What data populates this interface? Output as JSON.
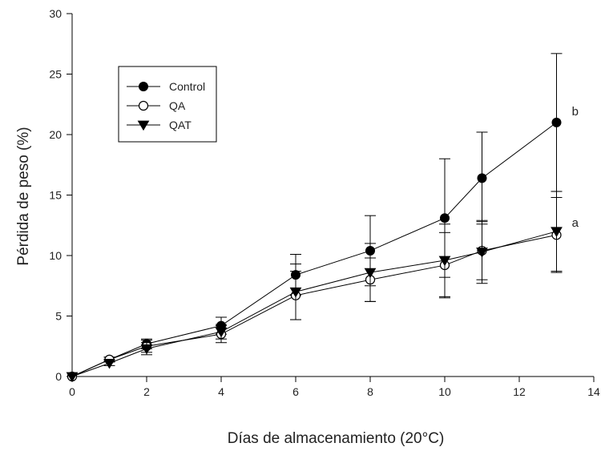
{
  "chart_data": {
    "type": "line",
    "title": "",
    "xlabel": "Días de almacenamiento (20°C)",
    "ylabel": "Pérdida de peso (%)",
    "xlim": [
      0,
      14
    ],
    "ylim": [
      0,
      30
    ],
    "xticks": [
      0,
      2,
      4,
      6,
      8,
      10,
      12,
      14
    ],
    "yticks": [
      0,
      5,
      10,
      15,
      20,
      25,
      30
    ],
    "xtick_labels": [
      "0",
      "2",
      "4",
      "6",
      "8",
      "10",
      "12",
      "14"
    ],
    "ytick_labels": [
      "0",
      "5",
      "10",
      "15",
      "20",
      "25",
      "30"
    ],
    "grid": false,
    "legend_position": "top-left",
    "series": [
      {
        "name": "Control",
        "marker": "filled-circle",
        "x": [
          0,
          1,
          2,
          4,
          6,
          8,
          10,
          11,
          13
        ],
        "y": [
          0,
          1.4,
          2.7,
          4.2,
          8.4,
          10.4,
          13.1,
          16.4,
          21.0
        ],
        "error": [
          0,
          0.2,
          0.4,
          0.7,
          1.7,
          2.9,
          4.9,
          3.8,
          5.7
        ]
      },
      {
        "name": "QA",
        "marker": "open-circle",
        "x": [
          0,
          1,
          2,
          4,
          6,
          8,
          10,
          11,
          13
        ],
        "y": [
          0,
          1.4,
          2.5,
          3.5,
          6.7,
          8.0,
          9.2,
          10.4,
          11.7
        ],
        "error": [
          0,
          0.2,
          0.5,
          0.7,
          2.0,
          1.8,
          2.7,
          2.4,
          3.1
        ]
      },
      {
        "name": "QAT",
        "marker": "filled-triangle-down",
        "x": [
          0,
          1,
          2,
          4,
          6,
          8,
          10,
          11,
          13
        ],
        "y": [
          0,
          1.1,
          2.3,
          3.7,
          7.0,
          8.6,
          9.6,
          10.3,
          12.0
        ],
        "error": [
          0,
          0.2,
          0.5,
          0.6,
          2.3,
          2.4,
          3.0,
          2.6,
          3.3
        ]
      }
    ],
    "annotations": [
      {
        "text": "b",
        "x": 13.5,
        "y": 21.6
      },
      {
        "text": "a",
        "x": 13.5,
        "y": 12.4
      }
    ]
  }
}
